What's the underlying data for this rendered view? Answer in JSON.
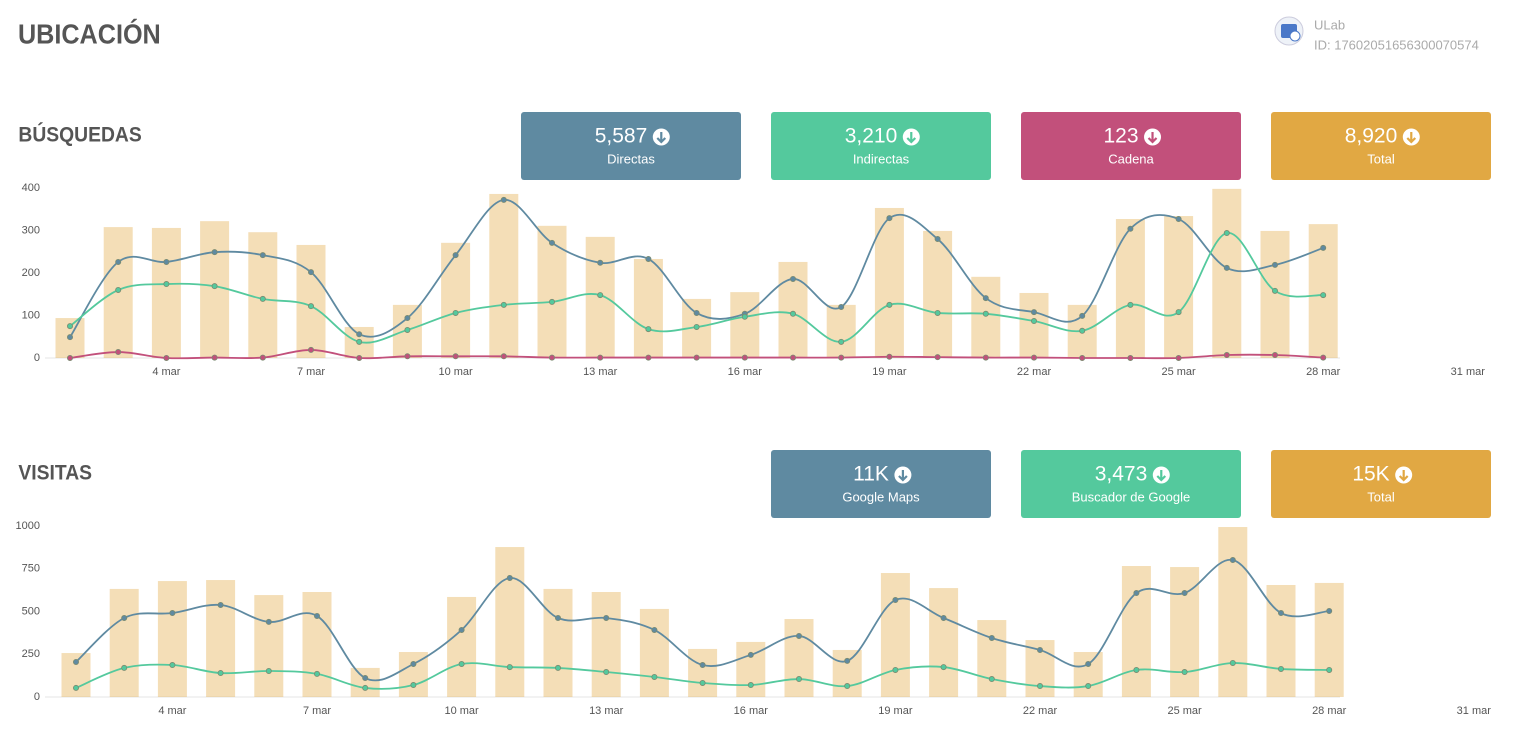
{
  "header": {
    "title": "UBICACIÓN",
    "account": "ULab",
    "account_id": "ID: 17602051656300070574"
  },
  "chart_data": [
    {
      "type": "combo",
      "title": "BÚSQUEDAS",
      "categories": [
        null,
        null,
        "4 mar",
        null,
        null,
        "7 mar",
        null,
        null,
        "10 mar",
        null,
        null,
        "13 mar",
        null,
        null,
        "16 mar",
        null,
        null,
        "19 mar",
        null,
        null,
        "22 mar",
        null,
        null,
        "25 mar",
        null,
        null,
        "28 mar",
        null,
        null,
        "31 mar"
      ],
      "ylim": [
        0,
        400
      ],
      "yticks": [
        0,
        100,
        200,
        300,
        400
      ],
      "series": [
        {
          "name": "Directas",
          "type": "line",
          "color": "#5f8aa1",
          "total": "5,587",
          "values": [
            49,
            226,
            226,
            249,
            242,
            202,
            56,
            94,
            242,
            372,
            271,
            224,
            233,
            106,
            104,
            186,
            120,
            329,
            280,
            141,
            108,
            99,
            304,
            327,
            212,
            219,
            259,
            null,
            null,
            null
          ]
        },
        {
          "name": "Indirectas",
          "type": "line",
          "color": "#54c99d",
          "total": "3,210",
          "values": [
            75,
            160,
            174,
            169,
            139,
            122,
            38,
            66,
            106,
            125,
            132,
            148,
            68,
            73,
            97,
            104,
            38,
            125,
            106,
            104,
            87,
            64,
            125,
            108,
            294,
            158,
            148,
            null,
            null,
            null
          ]
        },
        {
          "name": "Cadena",
          "type": "line",
          "color": "#c2507b",
          "total": "123",
          "values": [
            0,
            14,
            0,
            1,
            1,
            19,
            0,
            4,
            4,
            4,
            1,
            1,
            1,
            1,
            1,
            1,
            1,
            3,
            2,
            1,
            1,
            0,
            0,
            0,
            7,
            7,
            1,
            null,
            null,
            null
          ]
        },
        {
          "name": "Total",
          "type": "bar",
          "color": "#e1a843",
          "total": "8,920",
          "values": [
            94,
            308,
            306,
            322,
            296,
            266,
            73,
            125,
            271,
            386,
            311,
            285,
            233,
            139,
            155,
            226,
            125,
            353,
            299,
            191,
            153,
            125,
            327,
            334,
            398,
            299,
            315,
            null,
            null,
            null
          ]
        }
      ]
    },
    {
      "type": "combo",
      "title": "VISITAS",
      "categories": [
        null,
        null,
        "4 mar",
        null,
        null,
        "7 mar",
        null,
        null,
        "10 mar",
        null,
        null,
        "13 mar",
        null,
        null,
        "16 mar",
        null,
        null,
        "19 mar",
        null,
        null,
        "22 mar",
        null,
        null,
        "25 mar",
        null,
        null,
        "28 mar",
        null,
        null,
        "31 mar"
      ],
      "ylim": [
        0,
        1000
      ],
      "yticks": [
        0,
        250,
        500,
        750,
        1000
      ],
      "series": [
        {
          "name": "Google Maps",
          "type": "line",
          "color": "#5f8aa1",
          "total": "11K",
          "values": [
            205,
            462,
            491,
            538,
            439,
            474,
            111,
            193,
            392,
            696,
            462,
            462,
            392,
            187,
            246,
            357,
            211,
            567,
            462,
            345,
            275,
            193,
            608,
            608,
            801,
            491,
            503,
            null,
            null,
            null
          ]
        },
        {
          "name": "Buscador de Google",
          "type": "line",
          "color": "#54c99d",
          "total": "3,473",
          "values": [
            53,
            170,
            187,
            140,
            152,
            135,
            53,
            70,
            193,
            175,
            170,
            146,
            117,
            82,
            70,
            105,
            64,
            158,
            175,
            105,
            64,
            64,
            158,
            146,
            199,
            164,
            158,
            null,
            null,
            null
          ]
        },
        {
          "name": "Total",
          "type": "bar",
          "color": "#e1a843",
          "total": "15K",
          "values": [
            257,
            632,
            678,
            684,
            596,
            614,
            170,
            263,
            585,
            877,
            632,
            614,
            515,
            281,
            322,
            456,
            275,
            725,
            637,
            450,
            333,
            263,
            766,
            760,
            994,
            655,
            667,
            null,
            null,
            null
          ]
        }
      ]
    }
  ]
}
